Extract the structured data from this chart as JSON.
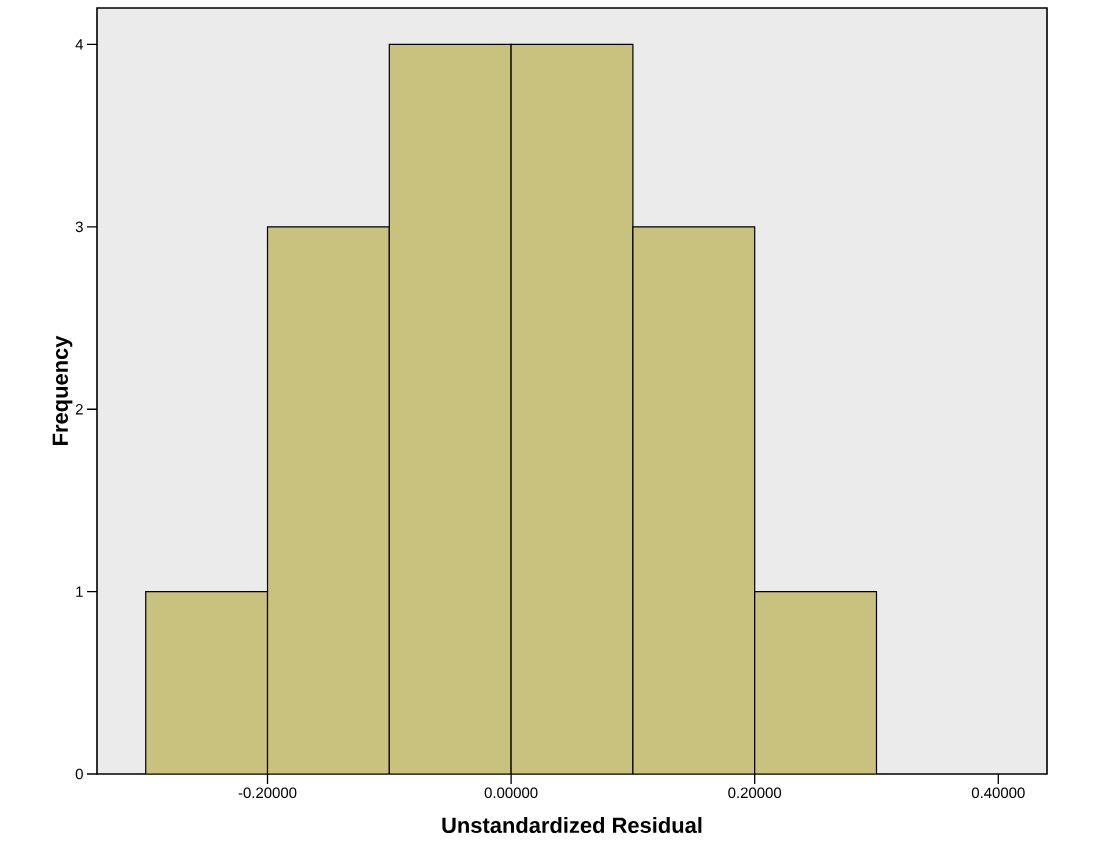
{
  "chart_data": {
    "type": "histogram",
    "xlabel": "Unstandardized Residual",
    "ylabel": "Frequency",
    "bins": [
      -0.3,
      -0.2,
      -0.1,
      0.0,
      0.1,
      0.2,
      0.3
    ],
    "values": [
      1,
      3,
      4,
      4,
      3,
      1
    ],
    "color": "#c9c27f",
    "xlim": [
      -0.34,
      0.44
    ],
    "ylim": [
      0,
      4.2
    ],
    "xticks": [
      {
        "value": -0.2,
        "label": "-0.20000"
      },
      {
        "value": 0.0,
        "label": "0.00000"
      },
      {
        "value": 0.2,
        "label": "0.20000"
      },
      {
        "value": 0.4,
        "label": "0.40000"
      }
    ],
    "yticks": [
      0,
      1,
      2,
      3,
      4
    ],
    "grid": false
  }
}
